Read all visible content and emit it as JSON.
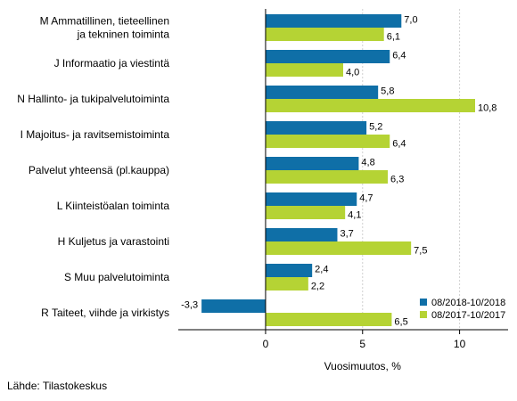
{
  "chart_data": {
    "type": "bar",
    "orientation": "horizontal",
    "categories": [
      [
        "M Ammatillinen, tieteellinen",
        "ja tekninen toiminta"
      ],
      [
        "J Informaatio ja viestintä"
      ],
      [
        "N Hallinto- ja tukipalvelutoiminta"
      ],
      [
        "I Majoitus- ja ravitsemistoiminta"
      ],
      [
        "Palvelut yhteensä (pl.kauppa)"
      ],
      [
        "L Kiinteistöalan toiminta"
      ],
      [
        "H Kuljetus ja varastointi"
      ],
      [
        "S Muu palvelutoiminta"
      ],
      [
        "R Taiteet, viihde ja virkistys"
      ]
    ],
    "series": [
      {
        "name": "08/2018-10/2018",
        "color": "#0f6fa7",
        "values": [
          7.0,
          6.4,
          5.8,
          5.2,
          4.8,
          4.7,
          3.7,
          2.4,
          -3.3
        ],
        "labels": [
          "7,0",
          "6,4",
          "5,8",
          "5,2",
          "4,8",
          "4,7",
          "3,7",
          "2,4",
          "-3,3"
        ]
      },
      {
        "name": "08/2017-10/2017",
        "color": "#b5d334",
        "values": [
          6.1,
          4.0,
          10.8,
          6.4,
          6.3,
          4.1,
          7.5,
          2.2,
          6.5
        ],
        "labels": [
          "6,1",
          "4,0",
          "10,8",
          "6,4",
          "6,3",
          "4,1",
          "7,5",
          "2,2",
          "6,5"
        ]
      }
    ],
    "xlim": [
      -4.5,
      12.5
    ],
    "xticks": [
      0,
      5,
      10
    ],
    "xtick_labels": [
      "0",
      "5",
      "10"
    ],
    "xlabel": "Vuosimuutos, %",
    "legend_position": "bottom-right"
  },
  "source": "Lähde: Tilastokeskus"
}
